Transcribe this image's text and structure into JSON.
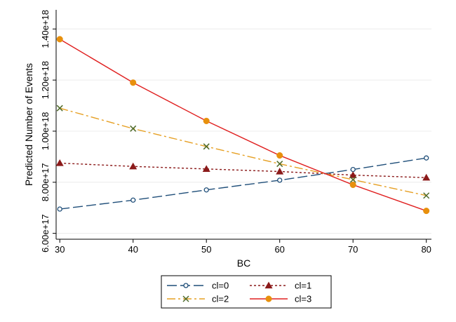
{
  "chart_data": {
    "type": "line",
    "title": "",
    "xlabel": "BC",
    "ylabel": "Predicted Number of Events",
    "x": [
      30,
      40,
      50,
      60,
      70,
      80
    ],
    "xticks": [
      {
        "value": 30,
        "label": "30"
      },
      {
        "value": 40,
        "label": "40"
      },
      {
        "value": 50,
        "label": "50"
      },
      {
        "value": 60,
        "label": "60"
      },
      {
        "value": 70,
        "label": "70"
      },
      {
        "value": 80,
        "label": "80"
      }
    ],
    "yticks": [
      {
        "value": 6e+17,
        "label": "6.00e+17"
      },
      {
        "value": 8e+17,
        "label": "8.00e+17"
      },
      {
        "value": 1e+18,
        "label": "1.00e+18"
      },
      {
        "value": 1.2e+18,
        "label": "1.20e+18"
      },
      {
        "value": 1.4e+18,
        "label": "1.40e+18"
      }
    ],
    "xlim": [
      29.5,
      80.7
    ],
    "ylim": [
      5.77e+17,
      1.475e+18
    ],
    "grid": true,
    "legend_position": "bottom",
    "series": [
      {
        "name": "cl=0",
        "color": "#1f4e79",
        "dash": "14,5",
        "marker": "circle-hollow",
        "values": [
          6.95e+17,
          7.3e+17,
          7.7e+17,
          8.08e+17,
          8.5e+17,
          8.95e+17
        ]
      },
      {
        "name": "cl=1",
        "color": "#8b1a1a",
        "dash": "3,3",
        "marker": "triangle",
        "values": [
          8.75e+17,
          8.62e+17,
          8.52e+17,
          8.42e+17,
          8.28e+17,
          8.18e+17
        ]
      },
      {
        "name": "cl=2",
        "color": "#e6a024",
        "dash": "12,4,3,4",
        "marker": "x",
        "markerColor": "#4f6b2a",
        "values": [
          1.09e+18,
          1.01e+18,
          9.4e+17,
          8.72e+17,
          8.1e+17,
          7.48e+17
        ]
      },
      {
        "name": "cl=3",
        "color": "#e02020",
        "dash": "",
        "marker": "circle-filled",
        "markerColor": "#e8900c",
        "values": [
          1.36e+18,
          1.19e+18,
          1.04e+18,
          9.05e+17,
          7.9e+17,
          6.88e+17
        ]
      }
    ]
  }
}
